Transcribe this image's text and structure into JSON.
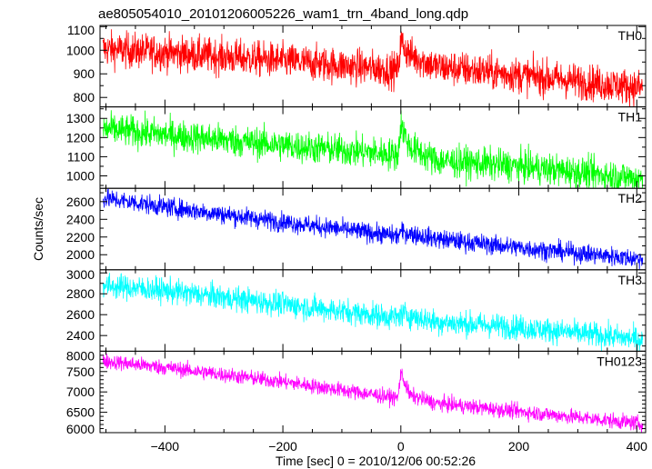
{
  "chart_data": {
    "type": "line",
    "title": "ae805054010_20101206005226_wam1_trn_4band_long.qdp",
    "xlabel": "Time [sec] 0 = 2010/12/06 00:52:26",
    "ylabel": "Counts/sec",
    "xlim": [
      -510,
      415
    ],
    "xticks": [
      -400,
      -200,
      0,
      200,
      400
    ],
    "x_tick_labels": [
      "−400",
      "−200",
      "0",
      "200",
      "400"
    ],
    "grid": false,
    "panels": [
      {
        "name": "TH0",
        "color": "#ff0000",
        "ylim": [
          760,
          1105
        ],
        "yticks": [
          800,
          900,
          1000,
          1100
        ],
        "trend": [
          [
            -505,
            1005
          ],
          [
            -400,
            990
          ],
          [
            -200,
            955
          ],
          [
            -5,
            915
          ],
          [
            0,
            1035
          ],
          [
            15,
            980
          ],
          [
            60,
            930
          ],
          [
            200,
            895
          ],
          [
            410,
            840
          ]
        ],
        "noise": 38
      },
      {
        "name": "TH1",
        "color": "#00ff00",
        "ylim": [
          935,
          1360
        ],
        "yticks": [
          1000,
          1100,
          1200,
          1300
        ],
        "trend": [
          [
            -505,
            1245
          ],
          [
            -400,
            1215
          ],
          [
            -200,
            1160
          ],
          [
            -5,
            1110
          ],
          [
            0,
            1270
          ],
          [
            15,
            1150
          ],
          [
            60,
            1080
          ],
          [
            200,
            1050
          ],
          [
            410,
            985
          ]
        ],
        "noise": 42
      },
      {
        "name": "TH2",
        "color": "#0000ff",
        "ylim": [
          1830,
          2750
        ],
        "yticks": [
          2000,
          2200,
          2400,
          2600
        ],
        "trend": [
          [
            -505,
            2640
          ],
          [
            -400,
            2540
          ],
          [
            -200,
            2370
          ],
          [
            -5,
            2210
          ],
          [
            0,
            2260
          ],
          [
            60,
            2180
          ],
          [
            200,
            2080
          ],
          [
            410,
            1950
          ]
        ],
        "noise": 55
      },
      {
        "name": "TH3",
        "color": "#00ffff",
        "ylim": [
          2250,
          3030
        ],
        "yticks": [
          2400,
          2600,
          2800,
          3000
        ],
        "trend": [
          [
            -505,
            2880
          ],
          [
            -400,
            2830
          ],
          [
            -200,
            2700
          ],
          [
            -5,
            2570
          ],
          [
            0,
            2610
          ],
          [
            60,
            2530
          ],
          [
            200,
            2480
          ],
          [
            410,
            2360
          ]
        ],
        "noise": 60
      },
      {
        "name": "TH0123",
        "color": "#ff00ff",
        "ylim": [
          6000,
          8000
        ],
        "yticks": [
          6000,
          6500,
          7000,
          7500,
          8000
        ],
        "trend": [
          [
            -505,
            7760
          ],
          [
            -400,
            7600
          ],
          [
            -200,
            7250
          ],
          [
            -5,
            6850
          ],
          [
            0,
            7480
          ],
          [
            15,
            6920
          ],
          [
            60,
            6720
          ],
          [
            200,
            6520
          ],
          [
            410,
            6220
          ]
        ],
        "noise": 95
      }
    ]
  }
}
